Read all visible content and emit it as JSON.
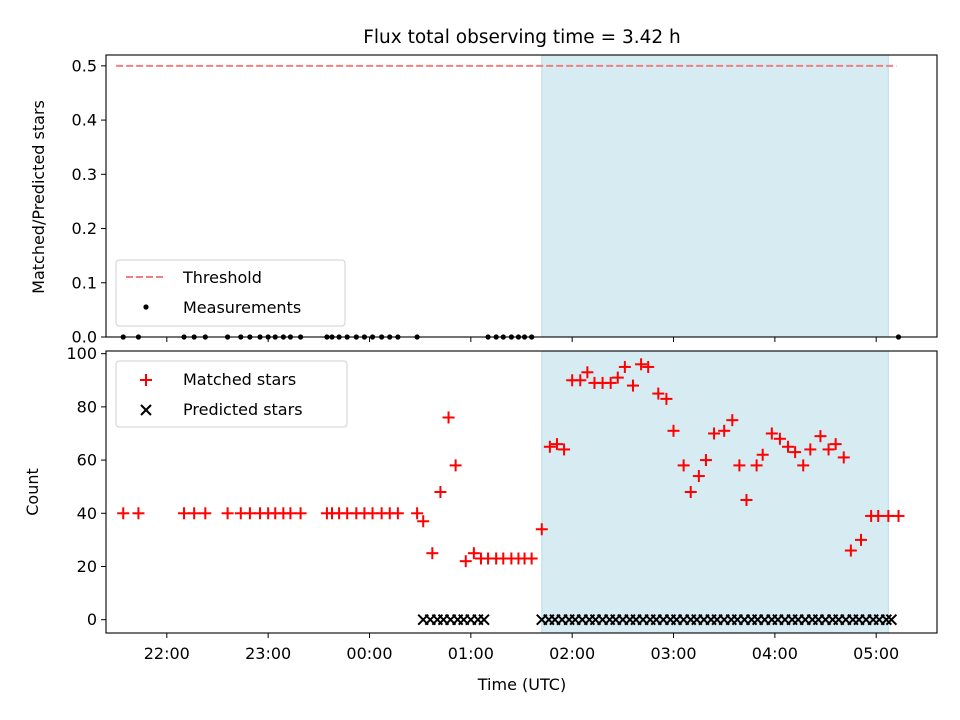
{
  "chart_data": [
    {
      "type": "scatter",
      "title": "Flux total observing time = 3.42 h",
      "ylabel": "Matched/Predicted stars",
      "xlabel": "",
      "ylim": [
        0,
        0.52
      ],
      "yticks": [
        "0.0",
        "0.1",
        "0.2",
        "0.3",
        "0.4",
        "0.5"
      ],
      "ytick_values": [
        0,
        0.1,
        0.2,
        0.3,
        0.4,
        0.5
      ],
      "xlim": [
        21.4,
        29.6
      ],
      "grid": false,
      "legend_position": "lower-left",
      "shaded_span": [
        25.7,
        29.12
      ],
      "series": [
        {
          "name": "Threshold",
          "style": "dashed-line",
          "color": "#f08080",
          "x": [
            21.5,
            29.2
          ],
          "y": [
            0.5,
            0.5
          ]
        },
        {
          "name": "Measurements",
          "style": "dot",
          "color": "#000000",
          "x": [
            21.57,
            21.72,
            22.17,
            22.27,
            22.38,
            22.6,
            22.73,
            22.82,
            22.92,
            23.0,
            23.07,
            23.15,
            23.22,
            23.32,
            23.58,
            23.63,
            23.7,
            23.78,
            23.87,
            23.95,
            24.03,
            24.12,
            24.2,
            24.28,
            24.47,
            25.17,
            25.25,
            25.32,
            25.4,
            25.47,
            25.53,
            25.6,
            29.22
          ],
          "y": [
            0,
            0,
            0,
            0,
            0,
            0,
            0,
            0,
            0,
            0,
            0,
            0,
            0,
            0,
            0,
            0,
            0,
            0,
            0,
            0,
            0,
            0,
            0,
            0,
            0,
            0,
            0,
            0,
            0,
            0,
            0,
            0,
            0
          ]
        }
      ]
    },
    {
      "type": "scatter",
      "ylabel": "Count",
      "xlabel": "Time (UTC)",
      "ylim": [
        -5,
        101
      ],
      "yticks": [
        "0",
        "20",
        "40",
        "60",
        "80",
        "100"
      ],
      "ytick_values": [
        0,
        20,
        40,
        60,
        80,
        100
      ],
      "xlim": [
        21.4,
        29.6
      ],
      "xticks": [
        "22:00",
        "23:00",
        "00:00",
        "01:00",
        "02:00",
        "03:00",
        "04:00",
        "05:00"
      ],
      "xtick_values": [
        22,
        23,
        24,
        25,
        26,
        27,
        28,
        29
      ],
      "grid": false,
      "legend_position": "top-left",
      "shaded_span": [
        25.7,
        29.12
      ],
      "series": [
        {
          "name": "Matched stars",
          "style": "plus",
          "color": "#ff0000",
          "x": [
            21.57,
            21.72,
            22.17,
            22.27,
            22.38,
            22.6,
            22.73,
            22.82,
            22.92,
            23.0,
            23.07,
            23.15,
            23.22,
            23.32,
            23.58,
            23.63,
            23.7,
            23.78,
            23.87,
            23.95,
            24.03,
            24.12,
            24.2,
            24.28,
            24.47,
            24.53,
            24.62,
            24.7,
            24.78,
            24.85,
            24.95,
            25.03,
            25.1,
            25.17,
            25.25,
            25.32,
            25.4,
            25.47,
            25.53,
            25.6,
            25.7,
            25.78,
            25.85,
            25.92,
            26.0,
            26.08,
            26.15,
            26.22,
            26.3,
            26.38,
            26.45,
            26.52,
            26.6,
            26.68,
            26.75,
            26.85,
            26.93,
            27.0,
            27.1,
            27.17,
            27.25,
            27.32,
            27.4,
            27.5,
            27.58,
            27.65,
            27.72,
            27.82,
            27.88,
            27.97,
            28.05,
            28.13,
            28.2,
            28.28,
            28.35,
            28.45,
            28.53,
            28.6,
            28.68,
            28.75,
            28.85,
            28.95,
            29.02,
            29.12,
            29.22
          ],
          "y": [
            40,
            40,
            40,
            40,
            40,
            40,
            40,
            40,
            40,
            40,
            40,
            40,
            40,
            40,
            40,
            40,
            40,
            40,
            40,
            40,
            40,
            40,
            40,
            40,
            40,
            37,
            25,
            48,
            76,
            58,
            22,
            25,
            23,
            23,
            23,
            23,
            23,
            23,
            23,
            23,
            34,
            65,
            66,
            64,
            90,
            90,
            93,
            89,
            89,
            89,
            91,
            95,
            88,
            96,
            95,
            85,
            83,
            71,
            58,
            48,
            54,
            60,
            70,
            71,
            75,
            58,
            45,
            58,
            62,
            70,
            68,
            65,
            63,
            58,
            64,
            69,
            64,
            66,
            61,
            26,
            30,
            39,
            39,
            39,
            39
          ]
        },
        {
          "name": "Predicted stars",
          "style": "x",
          "color": "#000000",
          "x": [
            24.53,
            24.6,
            24.67,
            24.73,
            24.8,
            24.87,
            24.93,
            25.0,
            25.07,
            25.13,
            25.7,
            25.77,
            25.83,
            25.9,
            25.97,
            26.03,
            26.1,
            26.17,
            26.23,
            26.3,
            26.37,
            26.43,
            26.5,
            26.57,
            26.63,
            26.7,
            26.77,
            26.83,
            26.9,
            26.97,
            27.03,
            27.1,
            27.17,
            27.23,
            27.3,
            27.37,
            27.43,
            27.5,
            27.57,
            27.63,
            27.7,
            27.77,
            27.83,
            27.9,
            27.97,
            28.03,
            28.1,
            28.17,
            28.23,
            28.3,
            28.37,
            28.43,
            28.5,
            28.57,
            28.63,
            28.7,
            28.77,
            28.83,
            28.9,
            28.97,
            29.03,
            29.1,
            29.15
          ],
          "y": [
            0,
            0,
            0,
            0,
            0,
            0,
            0,
            0,
            0,
            0,
            0,
            0,
            0,
            0,
            0,
            0,
            0,
            0,
            0,
            0,
            0,
            0,
            0,
            0,
            0,
            0,
            0,
            0,
            0,
            0,
            0,
            0,
            0,
            0,
            0,
            0,
            0,
            0,
            0,
            0,
            0,
            0,
            0,
            0,
            0,
            0,
            0,
            0,
            0,
            0,
            0,
            0,
            0,
            0,
            0,
            0,
            0,
            0,
            0,
            0,
            0,
            0,
            0
          ]
        }
      ]
    }
  ]
}
